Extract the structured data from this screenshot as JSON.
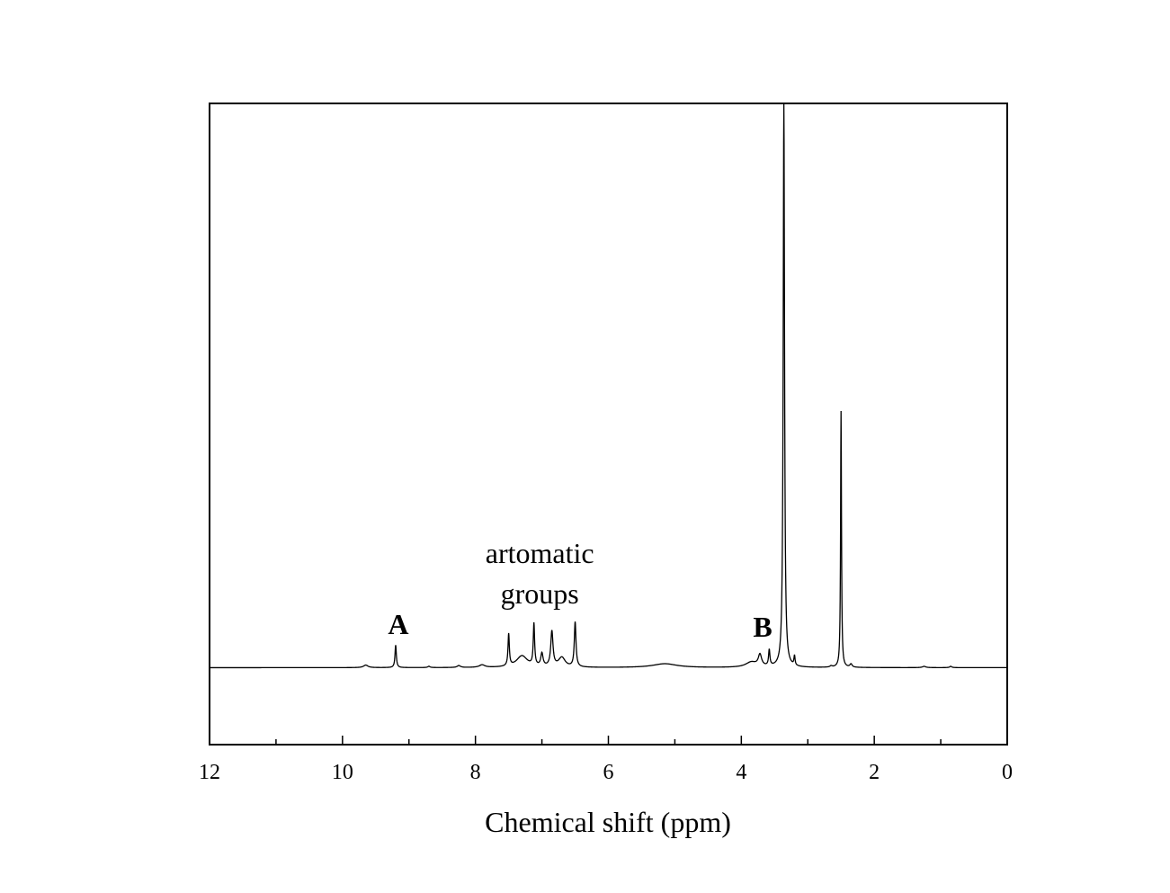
{
  "chart_data": {
    "type": "line",
    "title": "",
    "xlabel": "Chemical shift (ppm)",
    "ylabel": "",
    "xlim": [
      12,
      0
    ],
    "x_reversed": true,
    "x_ticks": [
      12,
      10,
      8,
      6,
      4,
      2,
      0
    ],
    "x_tick_labels": [
      "12",
      "10",
      "8",
      "6",
      "4",
      "2",
      "0"
    ],
    "y_ticks_shown": false,
    "grid": false,
    "legend": "none",
    "baseline": 0,
    "ylim": [
      -0.12,
      0.88
    ],
    "peaks": [
      {
        "ppm": 9.65,
        "height": 0.004,
        "width": 0.04
      },
      {
        "ppm": 9.2,
        "height": 0.035,
        "width": 0.012
      },
      {
        "ppm": 8.7,
        "height": 0.002,
        "width": 0.02
      },
      {
        "ppm": 8.25,
        "height": 0.003,
        "width": 0.03
      },
      {
        "ppm": 7.9,
        "height": 0.004,
        "width": 0.05
      },
      {
        "ppm": 7.5,
        "height": 0.05,
        "width": 0.012
      },
      {
        "ppm": 7.3,
        "height": 0.018,
        "width": 0.1
      },
      {
        "ppm": 7.12,
        "height": 0.065,
        "width": 0.012
      },
      {
        "ppm": 7.0,
        "height": 0.02,
        "width": 0.02
      },
      {
        "ppm": 6.85,
        "height": 0.055,
        "width": 0.02
      },
      {
        "ppm": 6.7,
        "height": 0.015,
        "width": 0.06
      },
      {
        "ppm": 6.5,
        "height": 0.07,
        "width": 0.015
      },
      {
        "ppm": 5.15,
        "height": 0.006,
        "width": 0.22
      },
      {
        "ppm": 3.85,
        "height": 0.008,
        "width": 0.1
      },
      {
        "ppm": 3.72,
        "height": 0.018,
        "width": 0.03
      },
      {
        "ppm": 3.58,
        "height": 0.025,
        "width": 0.012
      },
      {
        "ppm": 3.36,
        "height": 0.88,
        "width": 0.012
      },
      {
        "ppm": 3.2,
        "height": 0.015,
        "width": 0.01
      },
      {
        "ppm": 2.65,
        "height": 0.002,
        "width": 0.02
      },
      {
        "ppm": 2.5,
        "height": 0.4,
        "width": 0.008
      },
      {
        "ppm": 2.35,
        "height": 0.005,
        "width": 0.02
      },
      {
        "ppm": 1.25,
        "height": 0.002,
        "width": 0.03
      },
      {
        "ppm": 0.85,
        "height": 0.002,
        "width": 0.02
      }
    ],
    "annotations": [
      {
        "text": "A",
        "ppm": 9.2,
        "bold": true
      },
      {
        "text": "artomatic",
        "ppm": 7.1,
        "bold": false
      },
      {
        "text": "groups",
        "ppm": 7.1,
        "bold": false
      },
      {
        "text": "B",
        "ppm": 3.72,
        "bold": true
      }
    ]
  }
}
